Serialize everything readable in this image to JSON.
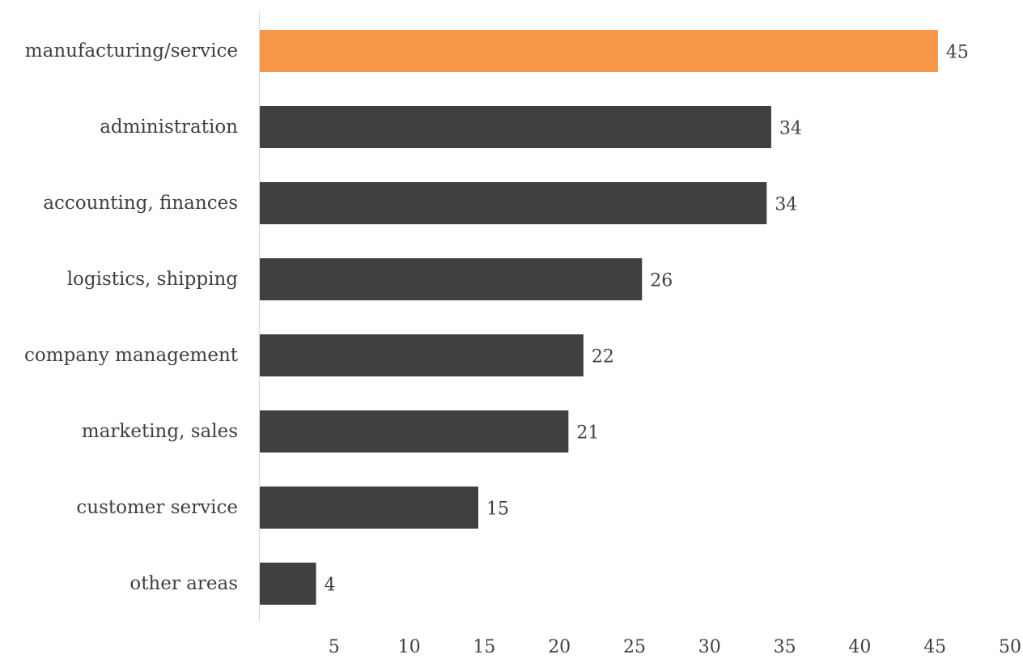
{
  "chart_data": {
    "type": "bar",
    "orientation": "horizontal",
    "title": "",
    "xlabel": "",
    "ylabel": "",
    "categories": [
      "manufacturing/service",
      "administration",
      "accounting, finances",
      "logistics, shipping",
      "company management",
      "marketing, sales",
      "customer service",
      "other areas"
    ],
    "values": [
      45.2,
      34.1,
      33.8,
      25.5,
      21.6,
      20.6,
      14.6,
      3.8
    ],
    "data_labels": [
      "45",
      "34",
      "34",
      "26",
      "22",
      "21",
      "15",
      "4"
    ],
    "xlim": [
      0,
      50
    ],
    "xticks": [
      "5",
      "10",
      "15",
      "20",
      "25",
      "30",
      "35",
      "40",
      "45",
      "50"
    ],
    "grid": false,
    "legend": "none",
    "colors": {
      "highlight": "#F79646",
      "default": "#404040",
      "axis": "#d9d9d9",
      "text": "#404040"
    },
    "highlight_index": 0
  }
}
